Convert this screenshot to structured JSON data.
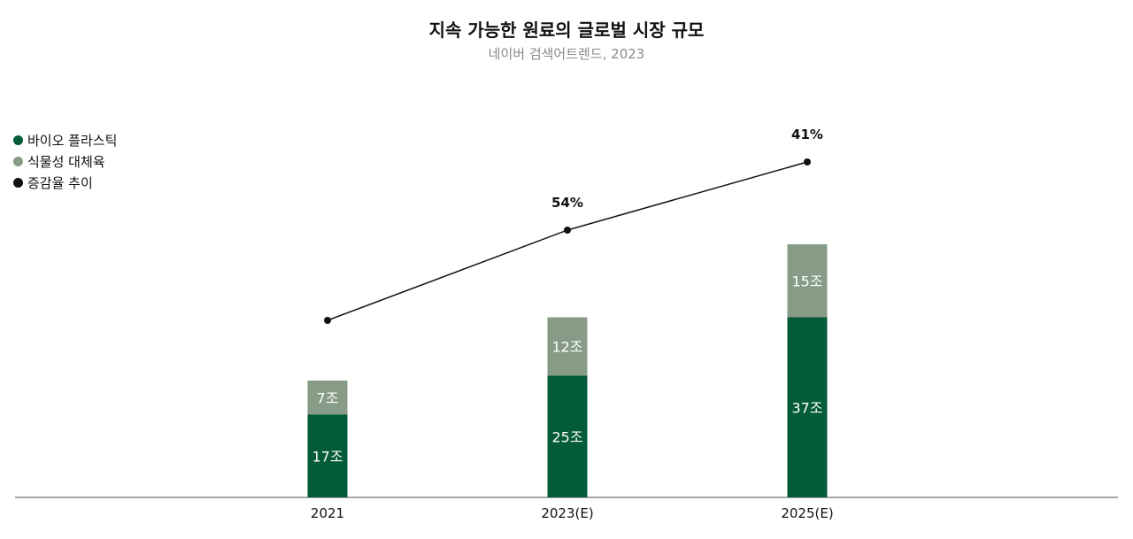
{
  "chart_data": {
    "type": "bar",
    "stacked": true,
    "title": "지속 가능한 원료의 글로벌 시장 규모",
    "subtitle": "네이버 검색어트렌드, 2023",
    "categories": [
      "2021",
      "2023(E)",
      "2025(E)"
    ],
    "series": [
      {
        "name": "바이오 플라스틱",
        "color": "#035b37",
        "values": [
          17,
          25,
          37
        ],
        "labels": [
          "17조",
          "25조",
          "37조"
        ]
      },
      {
        "name": "식물성 대체육",
        "color": "#879c86",
        "values": [
          7,
          12,
          15
        ],
        "labels": [
          "7조",
          "12조",
          "15조"
        ]
      }
    ],
    "growth_line": {
      "name": "증감율 추이",
      "color": "#111111",
      "values": [
        null,
        54,
        41
      ],
      "labels": [
        "",
        "54%",
        "41%"
      ]
    },
    "legend_position": "top-left",
    "grid": false
  }
}
